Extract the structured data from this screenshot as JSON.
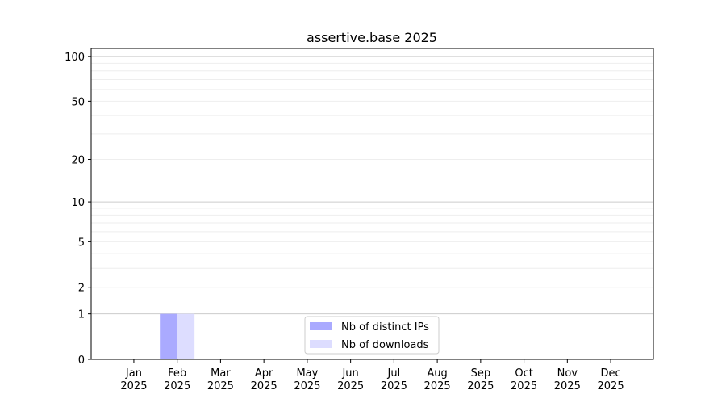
{
  "chart_data": {
    "type": "bar",
    "title": "assertive.base 2025",
    "xlabel": "",
    "ylabel": "",
    "y_scale": "log10(1+y)",
    "ylim": [
      0,
      113
    ],
    "y_ticks": [
      0,
      1,
      2,
      5,
      10,
      20,
      50,
      100
    ],
    "y_major_grid": [
      1,
      10,
      100
    ],
    "y_minor_grid": [
      2,
      3,
      4,
      5,
      6,
      7,
      8,
      9,
      20,
      30,
      40,
      50,
      60,
      70,
      80,
      90
    ],
    "grid": true,
    "legend_position": "bottom-center",
    "categories": [
      "Jan\n2025",
      "Feb\n2025",
      "Mar\n2025",
      "Apr\n2025",
      "May\n2025",
      "Jun\n2025",
      "Jul\n2025",
      "Aug\n2025",
      "Sep\n2025",
      "Oct\n2025",
      "Nov\n2025",
      "Dec\n2025"
    ],
    "series": [
      {
        "name": "Nb of distinct IPs",
        "color": "#aaaaff",
        "values": [
          0,
          1,
          0,
          0,
          0,
          0,
          0,
          0,
          0,
          0,
          0,
          0
        ]
      },
      {
        "name": "Nb of downloads",
        "color": "#ddddff",
        "values": [
          0,
          1,
          0,
          0,
          0,
          0,
          0,
          0,
          0,
          0,
          0,
          0
        ]
      }
    ]
  }
}
